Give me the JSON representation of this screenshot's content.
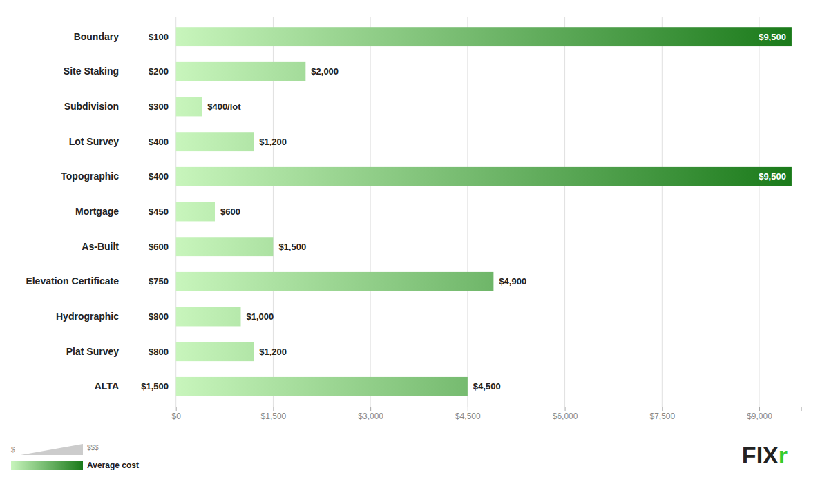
{
  "chart_data": {
    "type": "bar",
    "orientation": "horizontal",
    "categories": [
      "Boundary",
      "Site Staking",
      "Subdivision",
      "Lot Survey",
      "Topographic",
      "Mortgage",
      "As-Built",
      "Elevation Certificate",
      "Hydrographic",
      "Plat Survey",
      "ALTA"
    ],
    "values": [
      9500,
      2000,
      400,
      1200,
      9500,
      600,
      1500,
      4900,
      1000,
      1200,
      4500
    ],
    "value_labels": [
      "$9,500",
      "$2,000",
      "$400/lot",
      "$1,200",
      "$9,500",
      "$600",
      "$1,500",
      "$4,900",
      "$1,000",
      "$1,200",
      "$4,500"
    ],
    "data_labels": true,
    "min_values": [
      100,
      200,
      300,
      400,
      400,
      450,
      600,
      750,
      800,
      800,
      1500
    ],
    "min_value_labels": [
      "$100",
      "$200",
      "$300",
      "$400",
      "$400",
      "$450",
      "$600",
      "$750",
      "$800",
      "$800",
      "$1,500"
    ],
    "xlim": [
      -50,
      9650
    ],
    "xticks": [
      {
        "value": 0,
        "label": "$0"
      },
      {
        "value": 1500,
        "label": "$1,500"
      },
      {
        "value": 3000,
        "label": "$3,000"
      },
      {
        "value": 4500,
        "label": "$4,500"
      },
      {
        "value": 6000,
        "label": "$6,000"
      },
      {
        "value": 7500,
        "label": "$7,500"
      },
      {
        "value": 9000,
        "label": "$9,000"
      }
    ],
    "grid": true,
    "gradient": [
      "#c8f5bc",
      "#1a7a1a"
    ],
    "gradient_legend": {
      "low_label": "$",
      "high_label": "$$$",
      "label": "Average cost"
    },
    "logo": [
      {
        "text": "FIX",
        "color": "#222222"
      },
      {
        "text": "r",
        "color": "#33cc33"
      }
    ]
  }
}
